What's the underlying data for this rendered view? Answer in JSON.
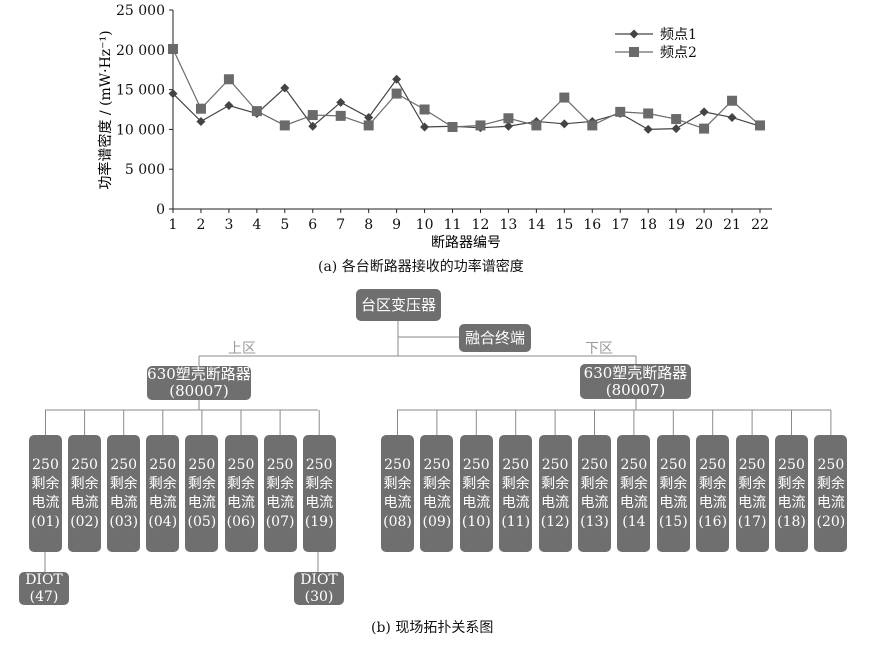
{
  "chart_data": {
    "type": "line",
    "ylabel": "功率谱密度 / (mW·Hz⁻¹)",
    "xlabel": "断路器编号",
    "x": [
      1,
      2,
      3,
      4,
      5,
      6,
      7,
      8,
      9,
      10,
      11,
      12,
      13,
      14,
      15,
      16,
      17,
      18,
      19,
      20,
      21,
      22
    ],
    "x_tick_labels": [
      "1",
      "2",
      "3",
      "4",
      "5",
      "6",
      "7",
      "8",
      "9",
      "10",
      "11",
      "12",
      "13",
      "14",
      "15",
      "16",
      "17",
      "18",
      "19",
      "20",
      "21",
      "22"
    ],
    "ylim": [
      0,
      25000
    ],
    "y_ticks": [
      0,
      5000,
      10000,
      15000,
      20000,
      25000
    ],
    "y_tick_labels": [
      "0",
      "5 000",
      "10 000",
      "15 000",
      "20 000",
      "25 000"
    ],
    "legend_position": "top-right",
    "grid": false,
    "series": [
      {
        "name": "频点1",
        "marker": "diamond",
        "color": "#444444",
        "values": [
          14500,
          11000,
          13000,
          12000,
          15200,
          10400,
          13400,
          11500,
          16300,
          10300,
          10400,
          10200,
          10400,
          11000,
          10700,
          11000,
          12000,
          10000,
          10100,
          12200,
          11500,
          10400
        ]
      },
      {
        "name": "频点2",
        "marker": "square",
        "color": "#6a6a6a",
        "values": [
          20100,
          12600,
          16300,
          12300,
          10500,
          11800,
          11700,
          10500,
          14500,
          12500,
          10300,
          10500,
          11400,
          10500,
          14000,
          10500,
          12200,
          12000,
          11300,
          10100,
          13600,
          10500
        ]
      }
    ],
    "caption": "(a)  各台断路器接收的功率谱密度"
  },
  "topology": {
    "caption": "(b)  现场拓扑关系图",
    "transformer": "台区变压器",
    "terminal": "融合终端",
    "upper_zone": "上区",
    "lower_zone": "下区",
    "upper_breaker": {
      "line1": "630塑壳断路器",
      "line2": "(80007)"
    },
    "lower_breaker": {
      "line1": "630塑壳断路器",
      "line2": "(80007)"
    },
    "leaf_line1": "250",
    "leaf_line2": "剩余",
    "leaf_line3": "电流",
    "upper_leaves": [
      "(01)",
      "(02)",
      "(03)",
      "(04)",
      "(05)",
      "(06)",
      "(07)",
      "(19)"
    ],
    "lower_leaves": [
      "(08)",
      "(09)",
      "(10)",
      "(11)",
      "(12)",
      "(13)",
      "(14",
      "(15)",
      "(16)",
      "(17)",
      "(18)",
      "(20)"
    ],
    "diot_left": {
      "line1": "DIOT",
      "line2": "(47)"
    },
    "diot_right": {
      "line1": "DIOT",
      "line2": "(30)"
    }
  }
}
